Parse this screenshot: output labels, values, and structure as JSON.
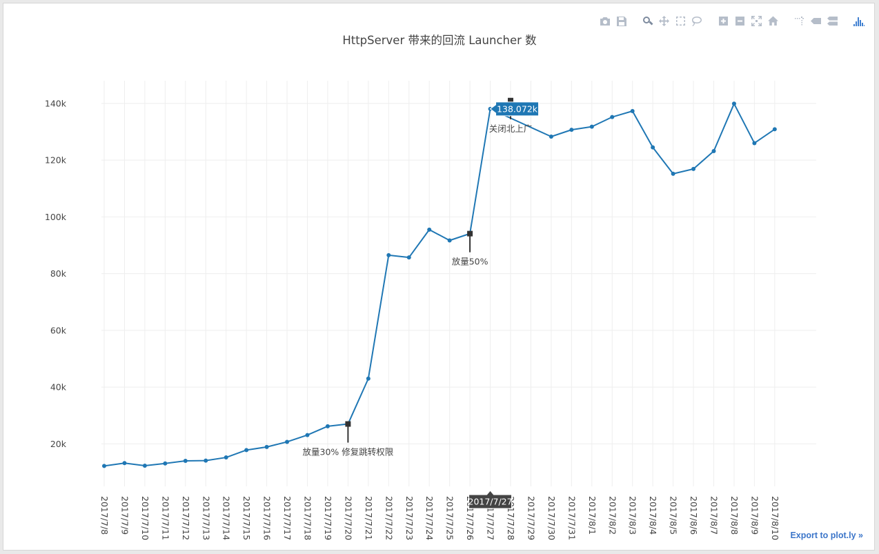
{
  "toolbar": {
    "buttons": [
      {
        "name": "camera-icon",
        "group": 0
      },
      {
        "name": "save-icon",
        "group": 0
      },
      {
        "name": "zoom-icon",
        "group": 1,
        "active": true
      },
      {
        "name": "pan-icon",
        "group": 1
      },
      {
        "name": "box-select-icon",
        "group": 1
      },
      {
        "name": "lasso-select-icon",
        "group": 1
      },
      {
        "name": "zoom-in-icon",
        "group": 2
      },
      {
        "name": "zoom-out-icon",
        "group": 2
      },
      {
        "name": "autoscale-icon",
        "group": 2
      },
      {
        "name": "reset-axes-icon",
        "group": 2
      },
      {
        "name": "spike-lines-icon",
        "group": 3
      },
      {
        "name": "hover-closest-icon",
        "group": 3
      },
      {
        "name": "hover-compare-icon",
        "group": 3
      },
      {
        "name": "plotly-logo-icon",
        "group": 4
      }
    ]
  },
  "export_link": "Export to plot.ly »",
  "colors": {
    "line": "#1f77b4",
    "annotation_marker": "#333333",
    "grid": "#eeeeee",
    "hover_label_bg": "#1f77b4",
    "axis_spike_bg": "#444444"
  },
  "chart_data": {
    "type": "line",
    "title": "HttpServer 带来的回流 Launcher 数",
    "xlabel": "",
    "ylabel": "",
    "ylim": [
      5000,
      148000
    ],
    "yticks": [
      20000,
      40000,
      60000,
      80000,
      100000,
      120000,
      140000
    ],
    "ytick_labels": [
      "20k",
      "40k",
      "60k",
      "80k",
      "100k",
      "120k",
      "140k"
    ],
    "grid": true,
    "categories": [
      "2017/7/8",
      "2017/7/9",
      "2017/7/10",
      "2017/7/11",
      "2017/7/12",
      "2017/7/13",
      "2017/7/14",
      "2017/7/15",
      "2017/7/16",
      "2017/7/17",
      "2017/7/18",
      "2017/7/19",
      "2017/7/20",
      "2017/7/21",
      "2017/7/22",
      "2017/7/23",
      "2017/7/24",
      "2017/7/25",
      "2017/7/26",
      "2017/7/27",
      "2017/7/28",
      "2017/7/29",
      "2017/7/30",
      "2017/7/31",
      "2017/8/1",
      "2017/8/2",
      "2017/8/3",
      "2017/8/4",
      "2017/8/5",
      "2017/8/6",
      "2017/8/7",
      "2017/8/8",
      "2017/8/9",
      "2017/8/10"
    ],
    "series": [
      {
        "values": [
          12200,
          13200,
          12300,
          13100,
          14000,
          14100,
          15200,
          17800,
          18900,
          20700,
          23100,
          26200,
          27000,
          43000,
          86500,
          85700,
          95500,
          91700,
          94100,
          138072,
          null,
          null,
          128300,
          130700,
          131800,
          135200,
          137300,
          124500,
          115200,
          116900,
          123200,
          139900,
          126000,
          130900
        ]
      }
    ],
    "annotations": [
      {
        "x": "2017/7/20",
        "y": 27000,
        "text": "放量30%   修复跳转权限"
      },
      {
        "x": "2017/7/26",
        "y": 94100,
        "text": "放量50%"
      },
      {
        "x": "2017/7/28",
        "y": 141000,
        "text": "关闭北上广"
      }
    ],
    "hover": {
      "x": "2017/7/27",
      "y_label": "138.072k",
      "x_label": "2017/7/27"
    }
  }
}
